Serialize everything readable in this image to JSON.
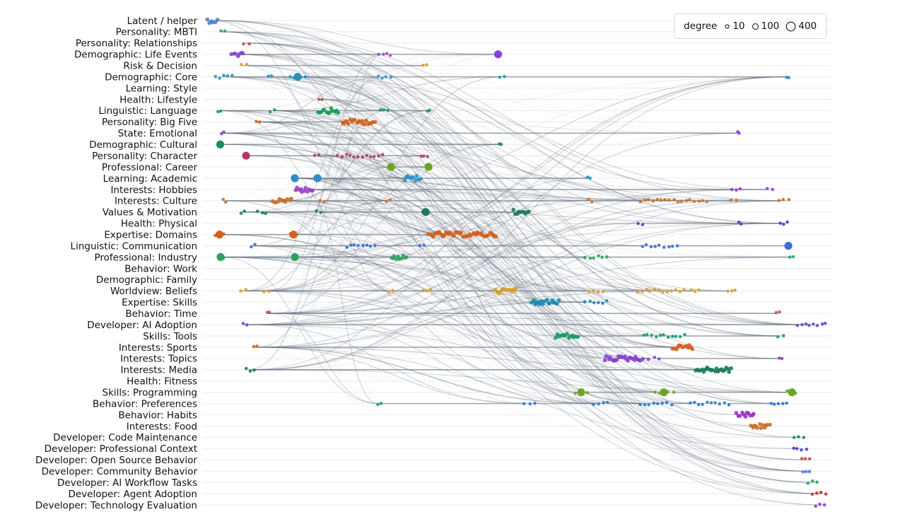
{
  "rows": [
    "Latent / helper",
    "Personality: MBTI",
    "Personality: Relationships",
    "Demographic: Life Events",
    "Risk & Decision",
    "Demographic: Core",
    "Learning: Style",
    "Health: Lifestyle",
    "Linguistic: Language",
    "Personality: Big Five",
    "State: Emotional",
    "Demographic: Cultural",
    "Personality: Character",
    "Professional: Career",
    "Learning: Academic",
    "Interests: Hobbies",
    "Interests: Culture",
    "Values & Motivation",
    "Health: Physical",
    "Expertise: Domains",
    "Linguistic: Communication",
    "Professional: Industry",
    "Behavior: Work",
    "Demographic: Family",
    "Worldview: Beliefs",
    "Expertise: Skills",
    "Behavior: Time",
    "Developer: AI Adoption",
    "Skills: Tools",
    "Interests: Sports",
    "Interests: Topics",
    "Interests: Media",
    "Health: Fitness",
    "Skills: Programming",
    "Behavior: Preferences",
    "Behavior: Habits",
    "Interests: Food",
    "Developer: Code Maintenance",
    "Developer: Professional Context",
    "Developer: Open Source Behavior",
    "Developer: Community Behavior",
    "Developer: AI Workflow Tasks",
    "Developer: Agent Adoption",
    "Developer: Technology Evaluation"
  ],
  "legend": {
    "title": "degree",
    "items": [
      {
        "label": "10",
        "degree": 10
      },
      {
        "label": "100",
        "degree": 100
      },
      {
        "label": "400",
        "degree": 400
      }
    ]
  },
  "colors": {
    "edge": "#5f6b7a",
    "gridline": "#e9ebee",
    "label": "#111111",
    "palette": [
      "#4a7fd4",
      "#2ca25f",
      "#c0504d",
      "#7b3fc4",
      "#d6a02c",
      "#3a9bc4",
      "#d2601f",
      "#b23a6b",
      "#1a8a5a",
      "#8a4fd1",
      "#6a6fc4",
      "#c84a8a"
    ]
  },
  "clusters": [
    {
      "row": 0,
      "range": [
        293,
        307
      ],
      "color": "#4a7fd4",
      "dense": true
    },
    {
      "row": 1,
      "range": [
        312,
        318
      ],
      "color": "#2ca25f"
    },
    {
      "row": 2,
      "range": [
        345,
        352
      ],
      "color": "#c0504d"
    },
    {
      "row": 3,
      "range": [
        328,
        344
      ],
      "color": "#8a3fd1",
      "dense": true
    },
    {
      "row": 3,
      "range": [
        536,
        552
      ],
      "color": "#9b4fd6"
    },
    {
      "row": 3,
      "range": [
        703,
        706
      ],
      "color": "#8a3fd1",
      "big": true
    },
    {
      "row": 4,
      "range": [
        341,
        349
      ],
      "color": "#d6a02c"
    },
    {
      "row": 4,
      "range": [
        598,
        603
      ],
      "color": "#d6a02c"
    },
    {
      "row": 5,
      "range": [
        305,
        328
      ],
      "color": "#2a8fb8"
    },
    {
      "row": 5,
      "range": [
        380,
        384
      ],
      "color": "#2a8fb8"
    },
    {
      "row": 5,
      "range": [
        410,
        432
      ],
      "color": "#2a8fb8",
      "big": true
    },
    {
      "row": 5,
      "range": [
        535,
        552
      ],
      "color": "#3a9bc4"
    },
    {
      "row": 5,
      "range": [
        708,
        713
      ],
      "color": "#2a8fb8"
    },
    {
      "row": 5,
      "range": [
        1112,
        1116
      ],
      "color": "#2a8fb8"
    },
    {
      "row": 7,
      "range": [
        450,
        456
      ],
      "color": "#c0504d"
    },
    {
      "row": 8,
      "range": [
        308,
        312
      ],
      "color": "#1a9a5a"
    },
    {
      "row": 8,
      "range": [
        383,
        389
      ],
      "color": "#1a9a5a"
    },
    {
      "row": 8,
      "range": [
        450,
        478
      ],
      "color": "#1a9a5a",
      "dense": true
    },
    {
      "row": 8,
      "range": [
        538,
        548
      ],
      "color": "#1a9a5a"
    },
    {
      "row": 8,
      "range": [
        605,
        608
      ],
      "color": "#1a9a5a"
    },
    {
      "row": 9,
      "range": [
        363,
        368
      ],
      "color": "#d2601f"
    },
    {
      "row": 9,
      "range": [
        484,
        530
      ],
      "color": "#d2601f",
      "dense": true
    },
    {
      "row": 10,
      "range": [
        313,
        317
      ],
      "color": "#8a3fd1"
    },
    {
      "row": 10,
      "range": [
        1043,
        1046
      ],
      "color": "#8a3fd1"
    },
    {
      "row": 11,
      "range": [
        309,
        314
      ],
      "color": "#1a8a6a",
      "big": true
    },
    {
      "row": 11,
      "range": [
        706,
        709
      ],
      "color": "#1a8a5a"
    },
    {
      "row": 12,
      "range": [
        346,
        350
      ],
      "color": "#b23a6b",
      "big": true
    },
    {
      "row": 12,
      "range": [
        445,
        450
      ],
      "color": "#b23a6b"
    },
    {
      "row": 12,
      "range": [
        478,
        541
      ],
      "color": "#b23a6b"
    },
    {
      "row": 12,
      "range": [
        595,
        605
      ],
      "color": "#b23a6b"
    },
    {
      "row": 13,
      "range": [
        550,
        556
      ],
      "color": "#6aa52a",
      "big": true
    },
    {
      "row": 13,
      "range": [
        604,
        608
      ],
      "color": "#6aa52a",
      "big": true
    },
    {
      "row": 14,
      "range": [
        414,
        420
      ],
      "color": "#2a8fc8",
      "big": true
    },
    {
      "row": 14,
      "range": [
        446,
        452
      ],
      "color": "#2a8fc8",
      "big": true
    },
    {
      "row": 14,
      "range": [
        572,
        595
      ],
      "color": "#2a8fc8",
      "dense": true
    },
    {
      "row": 14,
      "range": [
        831,
        834
      ],
      "color": "#2a8fc8"
    },
    {
      "row": 15,
      "range": [
        418,
        442
      ],
      "color": "#9b3fc4",
      "dense": true
    },
    {
      "row": 15,
      "range": [
        1035,
        1047
      ],
      "color": "#9b3fc4"
    },
    {
      "row": 15,
      "range": [
        1086,
        1092
      ],
      "color": "#9b3fc4"
    },
    {
      "row": 16,
      "range": [
        316,
        320
      ],
      "color": "#c8702a"
    },
    {
      "row": 16,
      "range": [
        385,
        412
      ],
      "color": "#c8702a",
      "dense": true
    },
    {
      "row": 16,
      "range": [
        452,
        458
      ],
      "color": "#c8702a"
    },
    {
      "row": 16,
      "range": [
        546,
        552
      ],
      "color": "#c8702a"
    },
    {
      "row": 16,
      "range": [
        832,
        838
      ],
      "color": "#c8702a"
    },
    {
      "row": 16,
      "range": [
        906,
        1000
      ],
      "color": "#c8702a"
    },
    {
      "row": 16,
      "range": [
        1035,
        1042
      ],
      "color": "#c8702a"
    },
    {
      "row": 16,
      "range": [
        1102,
        1115
      ],
      "color": "#c8702a"
    },
    {
      "row": 17,
      "range": [
        341,
        345
      ],
      "color": "#1a7a5a"
    },
    {
      "row": 17,
      "range": [
        365,
        376
      ],
      "color": "#1a7a5a"
    },
    {
      "row": 17,
      "range": [
        448,
        454
      ],
      "color": "#1a7a5a"
    },
    {
      "row": 17,
      "range": [
        598,
        606
      ],
      "color": "#1a7a5a",
      "big": true
    },
    {
      "row": 17,
      "range": [
        726,
        748
      ],
      "color": "#1a7a5a",
      "dense": true
    },
    {
      "row": 18,
      "range": [
        902,
        908
      ],
      "color": "#4a3fc4"
    },
    {
      "row": 18,
      "range": [
        1044,
        1048
      ],
      "color": "#4a3fc4"
    },
    {
      "row": 18,
      "range": [
        1104,
        1114
      ],
      "color": "#4a3fc4"
    },
    {
      "row": 19,
      "range": [
        305,
        316
      ],
      "color": "#d2601f",
      "big": true
    },
    {
      "row": 19,
      "range": [
        410,
        420
      ],
      "color": "#d2601f",
      "big": true
    },
    {
      "row": 19,
      "range": [
        606,
        702
      ],
      "color": "#d2601f",
      "dense": true
    },
    {
      "row": 20,
      "range": [
        355,
        360
      ],
      "color": "#3a6fd4"
    },
    {
      "row": 20,
      "range": [
        490,
        530
      ],
      "color": "#3a6fd4"
    },
    {
      "row": 20,
      "range": [
        594,
        600
      ],
      "color": "#3a6fd4"
    },
    {
      "row": 20,
      "range": [
        908,
        958
      ],
      "color": "#3a6fd4"
    },
    {
      "row": 20,
      "range": [
        1113,
        1117
      ],
      "color": "#3a6fd4",
      "big": true
    },
    {
      "row": 21,
      "range": [
        308,
        316
      ],
      "color": "#2ca25f",
      "big": true
    },
    {
      "row": 21,
      "range": [
        414,
        420
      ],
      "color": "#2ca25f",
      "big": true
    },
    {
      "row": 21,
      "range": [
        553,
        575
      ],
      "color": "#2ca25f",
      "dense": true
    },
    {
      "row": 21,
      "range": [
        828,
        858
      ],
      "color": "#2ca25f"
    },
    {
      "row": 21,
      "range": [
        1118,
        1122
      ],
      "color": "#2ca25f"
    },
    {
      "row": 24,
      "range": [
        341,
        347
      ],
      "color": "#d6a02c"
    },
    {
      "row": 24,
      "range": [
        373,
        381
      ],
      "color": "#d6a02c"
    },
    {
      "row": 24,
      "range": [
        549,
        555
      ],
      "color": "#d6a02c"
    },
    {
      "row": 24,
      "range": [
        599,
        608
      ],
      "color": "#d6a02c"
    },
    {
      "row": 24,
      "range": [
        700,
        730
      ],
      "color": "#d6a02c",
      "dense": true
    },
    {
      "row": 24,
      "range": [
        832,
        852
      ],
      "color": "#d6a02c"
    },
    {
      "row": 24,
      "range": [
        902,
        968
      ],
      "color": "#d6a02c"
    },
    {
      "row": 24,
      "range": [
        978,
        988
      ],
      "color": "#d6a02c"
    },
    {
      "row": 24,
      "range": [
        1030,
        1040
      ],
      "color": "#d6a02c"
    },
    {
      "row": 25,
      "range": [
        752,
        790
      ],
      "color": "#1a8ab0",
      "dense": true
    },
    {
      "row": 25,
      "range": [
        828,
        858
      ],
      "color": "#1a8ab0"
    },
    {
      "row": 26,
      "range": [
        378,
        382
      ],
      "color": "#c0504d"
    },
    {
      "row": 26,
      "range": [
        1098,
        1102
      ],
      "color": "#c0504d"
    },
    {
      "row": 27,
      "range": [
        345,
        350
      ],
      "color": "#5a4fd1"
    },
    {
      "row": 27,
      "range": [
        1128,
        1168
      ],
      "color": "#5a4fd1"
    },
    {
      "row": 28,
      "range": [
        786,
        818
      ],
      "color": "#1a9a6a",
      "dense": true
    },
    {
      "row": 28,
      "range": [
        910,
        968
      ],
      "color": "#1a9a6a"
    },
    {
      "row": 28,
      "range": [
        1100,
        1108
      ],
      "color": "#1a9a6a"
    },
    {
      "row": 29,
      "range": [
        358,
        364
      ],
      "color": "#d2601f"
    },
    {
      "row": 29,
      "range": [
        952,
        980
      ],
      "color": "#d2601f",
      "dense": true
    },
    {
      "row": 30,
      "range": [
        856,
        908
      ],
      "color": "#8a3fd1",
      "dense": true
    },
    {
      "row": 30,
      "range": [
        918,
        932
      ],
      "color": "#8a3fd1"
    },
    {
      "row": 30,
      "range": [
        1102,
        1106
      ],
      "color": "#8a3fd1"
    },
    {
      "row": 31,
      "range": [
        349,
        360
      ],
      "color": "#1a7a5a"
    },
    {
      "row": 31,
      "range": [
        984,
        1034
      ],
      "color": "#1a7a5a",
      "dense": true
    },
    {
      "row": 33,
      "range": [
        814,
        830
      ],
      "color": "#6aa52a",
      "big": true
    },
    {
      "row": 33,
      "range": [
        926,
        952
      ],
      "color": "#6aa52a",
      "big": true
    },
    {
      "row": 33,
      "range": [
        1114,
        1126
      ],
      "color": "#6aa52a",
      "big": true
    },
    {
      "row": 34,
      "range": [
        534,
        538
      ],
      "color": "#1a9a6a"
    },
    {
      "row": 34,
      "range": [
        742,
        756
      ],
      "color": "#2a7ad4"
    },
    {
      "row": 34,
      "range": [
        840,
        860
      ],
      "color": "#2a7ad4"
    },
    {
      "row": 34,
      "range": [
        906,
        950
      ],
      "color": "#2a7ad4"
    },
    {
      "row": 34,
      "range": [
        976,
        1030
      ],
      "color": "#2a7ad4"
    },
    {
      "row": 34,
      "range": [
        1090,
        1112
      ],
      "color": "#2a7ad4"
    },
    {
      "row": 35,
      "range": [
        1042,
        1066
      ],
      "color": "#9b2fc4",
      "dense": true
    },
    {
      "row": 36,
      "range": [
        1062,
        1088
      ],
      "color": "#c8702a",
      "dense": true
    },
    {
      "row": 37,
      "range": [
        1124,
        1136
      ],
      "color": "#1a8a5a"
    },
    {
      "row": 38,
      "range": [
        1122,
        1140
      ],
      "color": "#4a3fc4"
    },
    {
      "row": 39,
      "range": [
        1134,
        1146
      ],
      "color": "#c0504d"
    },
    {
      "row": 40,
      "range": [
        1136,
        1146
      ],
      "color": "#4a7fd4"
    },
    {
      "row": 41,
      "range": [
        1142,
        1156
      ],
      "color": "#2ca25f"
    },
    {
      "row": 42,
      "range": [
        1148,
        1168
      ],
      "color": "#c0303d"
    },
    {
      "row": 43,
      "range": [
        1154,
        1166
      ],
      "color": "#8a3fd1"
    }
  ]
}
